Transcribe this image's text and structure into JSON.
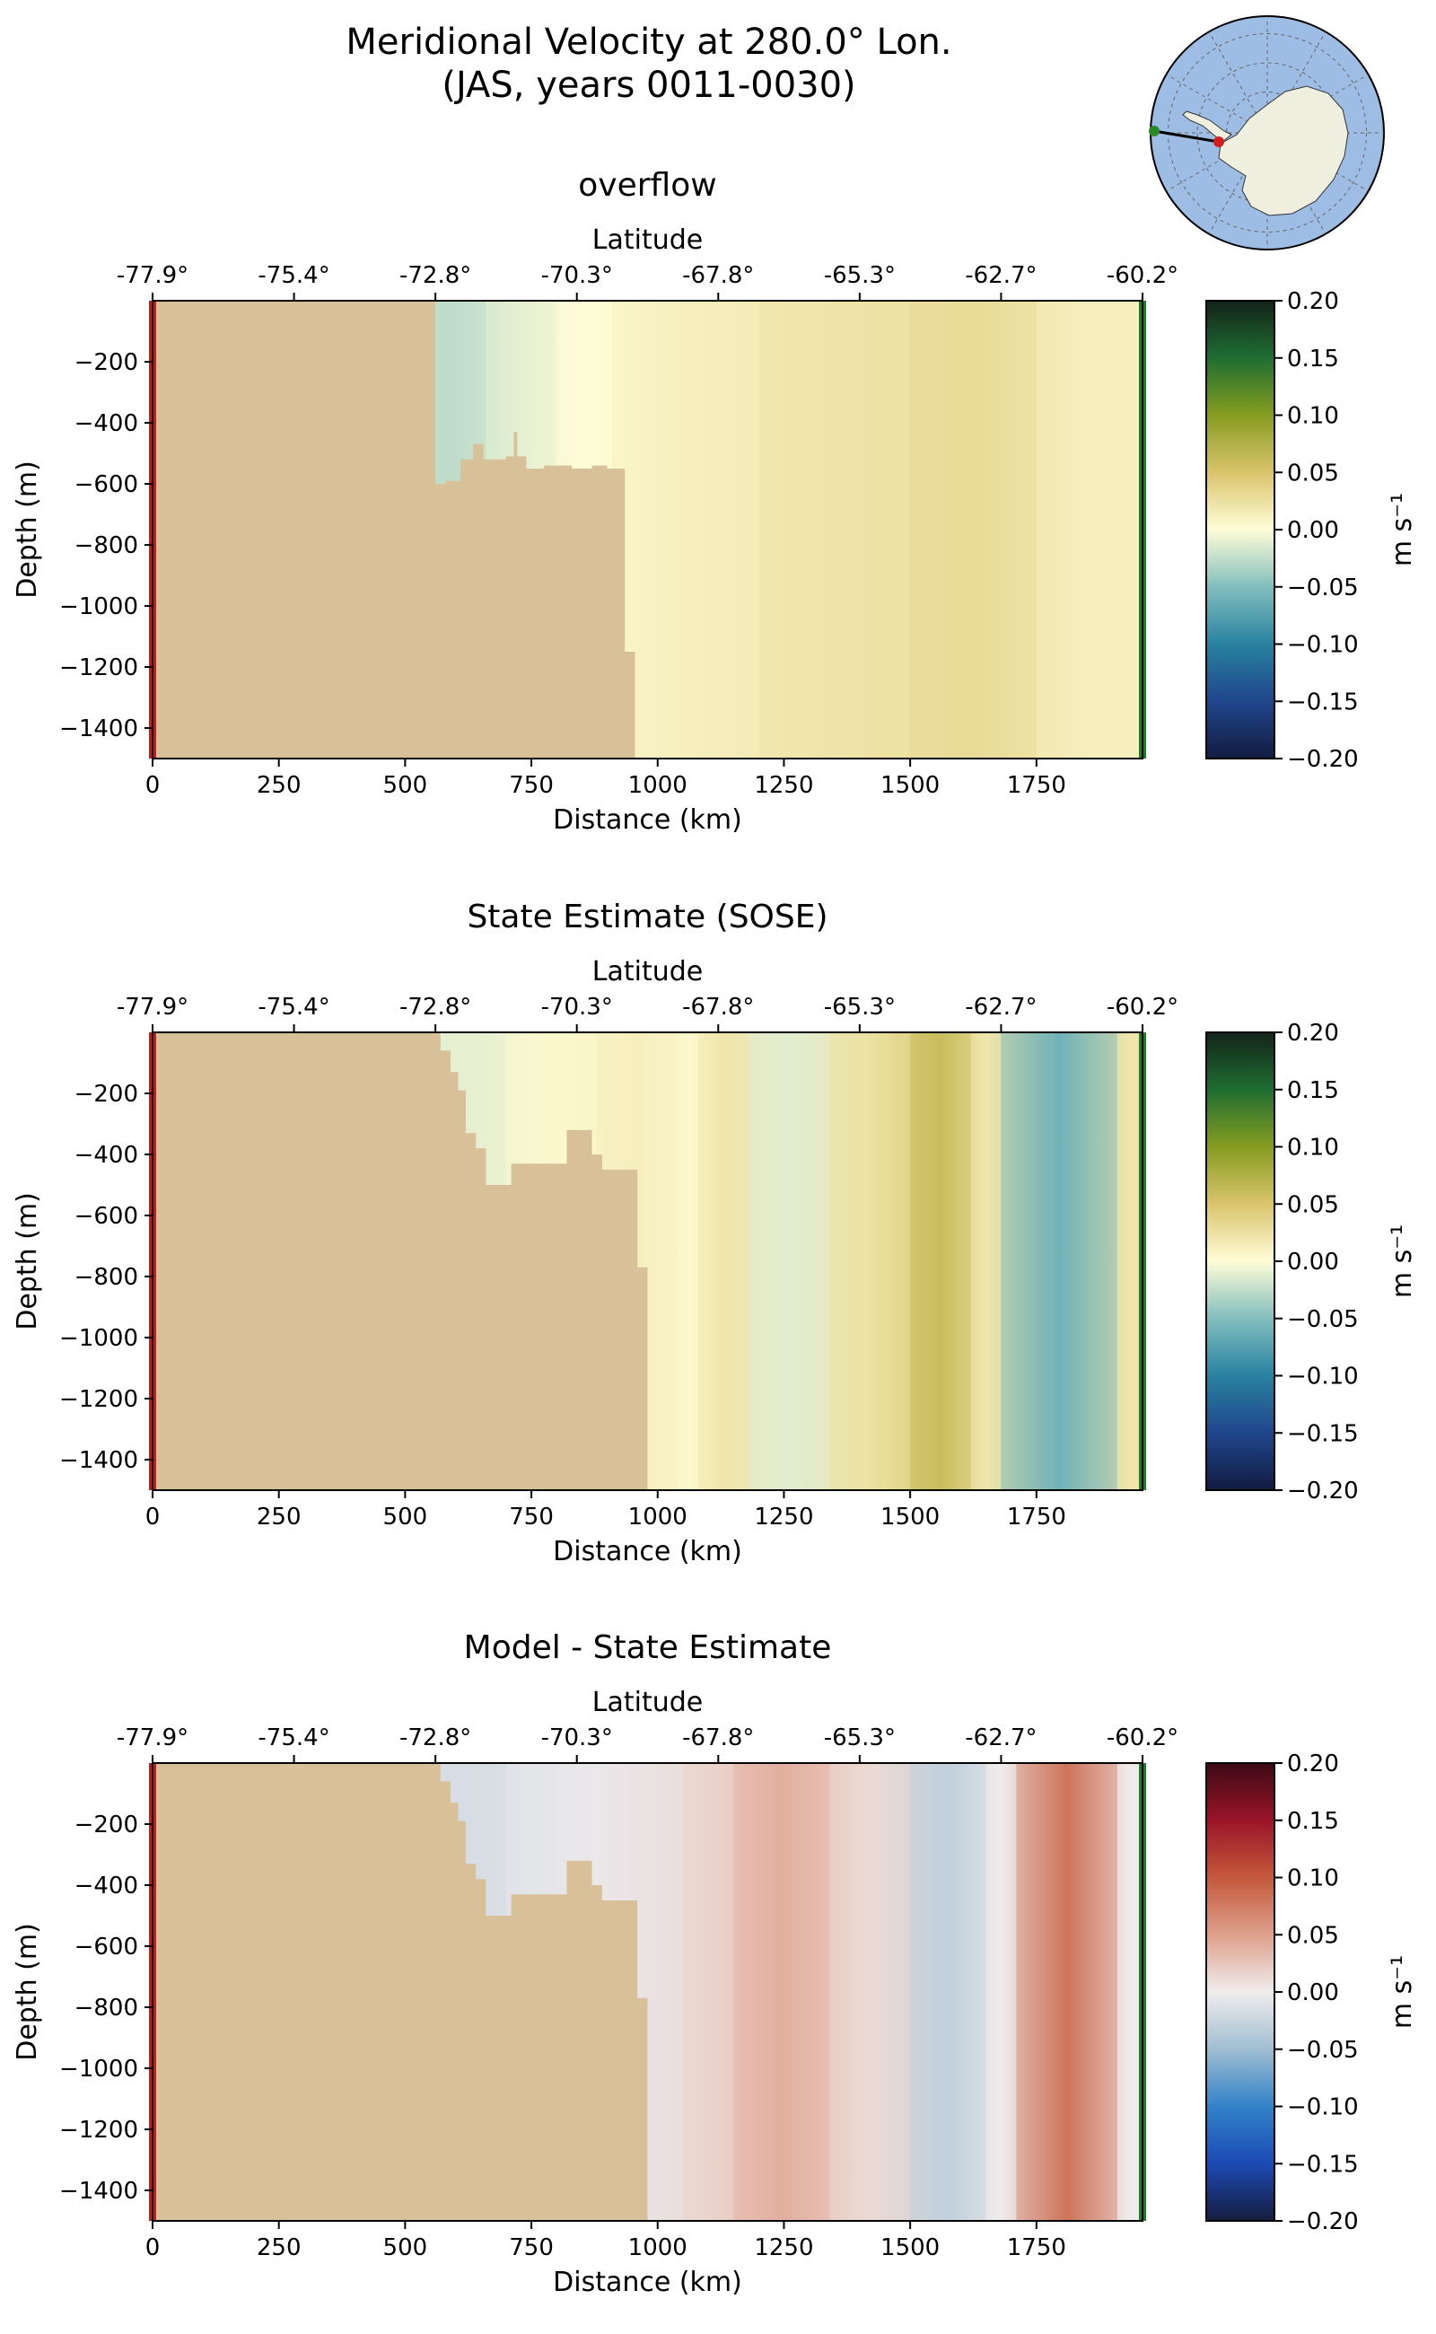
{
  "figure": {
    "title_line1": "Meridional Velocity at 280.0° Lon.",
    "title_line2": "(JAS, years 0011-0030)"
  },
  "colors": {
    "land": "#d8c098",
    "ocean_map": "#9ebde4",
    "antarctica": "#efefdf",
    "start_marker": "#c21d1d",
    "end_marker": "#1e7d2a",
    "map_dot_start": "#2a8a2a",
    "map_dot_end": "#d21e1e"
  },
  "inset_map": {
    "section_line": "Antarctic Peninsula section",
    "start_label": "",
    "end_label": ""
  },
  "chart_data": [
    {
      "type": "heatmap",
      "title": "overflow",
      "xlabel": "Distance (km)",
      "ylabel": "Depth (m)",
      "top_xlabel": "Latitude",
      "xlim": [
        0,
        1960
      ],
      "ylim": [
        -1500,
        0
      ],
      "x_ticks": [
        0,
        250,
        500,
        750,
        1000,
        1250,
        1500,
        1750
      ],
      "x_tick_labels": [
        "0",
        "250",
        "500",
        "750",
        "1000",
        "1250",
        "1500",
        "1750"
      ],
      "y_ticks": [
        -200,
        -400,
        -600,
        -800,
        -1000,
        -1200,
        -1400
      ],
      "y_tick_labels": [
        "−200",
        "−400",
        "−600",
        "−800",
        "−1000",
        "−1200",
        "−1400"
      ],
      "lat_ticks": [
        0,
        280,
        560,
        840,
        1120,
        1400,
        1680,
        1960
      ],
      "lat_tick_labels": [
        "-77.9°",
        "-75.4°",
        "-72.8°",
        "-70.3°",
        "-67.8°",
        "-65.3°",
        "-62.7°",
        "-60.2°"
      ],
      "colormap": "delta",
      "colorbar": {
        "label": "m s⁻¹",
        "range": [
          -0.2,
          0.2
        ],
        "ticks": [
          0.2,
          0.15,
          0.1,
          0.05,
          0.0,
          -0.05,
          -0.1,
          -0.15,
          -0.2
        ],
        "tick_labels": [
          "0.20",
          "0.15",
          "0.10",
          "0.05",
          "0.00",
          "−0.05",
          "−0.10",
          "−0.15",
          "−0.20"
        ]
      },
      "velocity_columns": [
        {
          "x0": 560,
          "x1": 660,
          "value": -0.025
        },
        {
          "x0": 660,
          "x1": 800,
          "value": -0.01
        },
        {
          "x0": 800,
          "x1": 910,
          "value": 0.0
        },
        {
          "x0": 910,
          "x1": 1200,
          "value": 0.012
        },
        {
          "x0": 1200,
          "x1": 1500,
          "value": 0.022
        },
        {
          "x0": 1500,
          "x1": 1750,
          "value": 0.03
        },
        {
          "x0": 1750,
          "x1": 1960,
          "value": 0.012
        }
      ],
      "bathymetry": [
        [
          0,
          0
        ],
        [
          560,
          0
        ],
        [
          560,
          -600
        ],
        [
          580,
          -600
        ],
        [
          580,
          -590
        ],
        [
          610,
          -590
        ],
        [
          610,
          -520
        ],
        [
          635,
          -520
        ],
        [
          635,
          -470
        ],
        [
          655,
          -470
        ],
        [
          655,
          -520
        ],
        [
          700,
          -520
        ],
        [
          700,
          -510
        ],
        [
          715,
          -510
        ],
        [
          715,
          -430
        ],
        [
          722,
          -430
        ],
        [
          722,
          -510
        ],
        [
          740,
          -510
        ],
        [
          740,
          -550
        ],
        [
          775,
          -550
        ],
        [
          775,
          -540
        ],
        [
          830,
          -540
        ],
        [
          830,
          -550
        ],
        [
          870,
          -550
        ],
        [
          870,
          -540
        ],
        [
          900,
          -540
        ],
        [
          900,
          -550
        ],
        [
          935,
          -550
        ],
        [
          935,
          -1150
        ],
        [
          955,
          -1150
        ],
        [
          955,
          -1500
        ],
        [
          0,
          -1500
        ]
      ]
    },
    {
      "type": "heatmap",
      "title": "State Estimate (SOSE)",
      "xlabel": "Distance (km)",
      "ylabel": "Depth (m)",
      "top_xlabel": "Latitude",
      "xlim": [
        0,
        1960
      ],
      "ylim": [
        -1500,
        0
      ],
      "x_ticks": [
        0,
        250,
        500,
        750,
        1000,
        1250,
        1500,
        1750
      ],
      "x_tick_labels": [
        "0",
        "250",
        "500",
        "750",
        "1000",
        "1250",
        "1500",
        "1750"
      ],
      "y_ticks": [
        -200,
        -400,
        -600,
        -800,
        -1000,
        -1200,
        -1400
      ],
      "y_tick_labels": [
        "−200",
        "−400",
        "−600",
        "−800",
        "−1000",
        "−1200",
        "−1400"
      ],
      "lat_ticks": [
        0,
        280,
        560,
        840,
        1120,
        1400,
        1680,
        1960
      ],
      "lat_tick_labels": [
        "-77.9°",
        "-75.4°",
        "-72.8°",
        "-70.3°",
        "-67.8°",
        "-65.3°",
        "-62.7°",
        "-60.2°"
      ],
      "colormap": "delta",
      "colorbar": {
        "label": "m s⁻¹",
        "range": [
          -0.2,
          0.2
        ],
        "ticks": [
          0.2,
          0.15,
          0.1,
          0.05,
          0.0,
          -0.05,
          -0.1,
          -0.15,
          -0.2
        ],
        "tick_labels": [
          "0.20",
          "0.15",
          "0.10",
          "0.05",
          "0.00",
          "−0.05",
          "−0.10",
          "−0.15",
          "−0.20"
        ]
      },
      "velocity_columns": [
        {
          "x0": 580,
          "x1": 700,
          "value": -0.01
        },
        {
          "x0": 700,
          "x1": 880,
          "value": 0.004
        },
        {
          "x0": 880,
          "x1": 1040,
          "value": 0.012
        },
        {
          "x0": 1040,
          "x1": 1080,
          "value": 0.004
        },
        {
          "x0": 1080,
          "x1": 1180,
          "value": 0.02
        },
        {
          "x0": 1180,
          "x1": 1340,
          "value": -0.012
        },
        {
          "x0": 1340,
          "x1": 1500,
          "value": 0.025
        },
        {
          "x0": 1500,
          "x1": 1620,
          "value": 0.06
        },
        {
          "x0": 1620,
          "x1": 1680,
          "value": 0.02
        },
        {
          "x0": 1680,
          "x1": 1910,
          "value": -0.06
        },
        {
          "x0": 1910,
          "x1": 1960,
          "value": 0.02
        }
      ],
      "bathymetry": [
        [
          0,
          0
        ],
        [
          570,
          0
        ],
        [
          570,
          -60
        ],
        [
          590,
          -60
        ],
        [
          590,
          -130
        ],
        [
          605,
          -130
        ],
        [
          605,
          -190
        ],
        [
          620,
          -190
        ],
        [
          620,
          -330
        ],
        [
          640,
          -330
        ],
        [
          640,
          -380
        ],
        [
          660,
          -380
        ],
        [
          660,
          -500
        ],
        [
          710,
          -500
        ],
        [
          710,
          -430
        ],
        [
          820,
          -430
        ],
        [
          820,
          -320
        ],
        [
          870,
          -320
        ],
        [
          870,
          -400
        ],
        [
          890,
          -400
        ],
        [
          890,
          -450
        ],
        [
          960,
          -450
        ],
        [
          960,
          -770
        ],
        [
          980,
          -770
        ],
        [
          980,
          -1500
        ],
        [
          0,
          -1500
        ]
      ]
    },
    {
      "type": "heatmap",
      "title": "Model - State Estimate",
      "xlabel": "Distance (km)",
      "ylabel": "Depth (m)",
      "top_xlabel": "Latitude",
      "xlim": [
        0,
        1960
      ],
      "ylim": [
        -1500,
        0
      ],
      "x_ticks": [
        0,
        250,
        500,
        750,
        1000,
        1250,
        1500,
        1750
      ],
      "x_tick_labels": [
        "0",
        "250",
        "500",
        "750",
        "1000",
        "1250",
        "1500",
        "1750"
      ],
      "y_ticks": [
        -200,
        -400,
        -600,
        -800,
        -1000,
        -1200,
        -1400
      ],
      "y_tick_labels": [
        "−200",
        "−400",
        "−600",
        "−800",
        "−1000",
        "−1200",
        "−1400"
      ],
      "lat_ticks": [
        0,
        280,
        560,
        840,
        1120,
        1400,
        1680,
        1960
      ],
      "lat_tick_labels": [
        "-77.9°",
        "-75.4°",
        "-72.8°",
        "-70.3°",
        "-67.8°",
        "-65.3°",
        "-62.7°",
        "-60.2°"
      ],
      "colormap": "balance",
      "colorbar": {
        "label": "m s⁻¹",
        "range": [
          -0.2,
          0.2
        ],
        "ticks": [
          0.2,
          0.15,
          0.1,
          0.05,
          0.0,
          -0.05,
          -0.1,
          -0.15,
          -0.2
        ],
        "tick_labels": [
          "0.20",
          "0.15",
          "0.10",
          "0.05",
          "0.00",
          "−0.05",
          "−0.10",
          "−0.15",
          "−0.20"
        ]
      },
      "velocity_columns": [
        {
          "x0": 580,
          "x1": 700,
          "value": -0.015
        },
        {
          "x0": 700,
          "x1": 1050,
          "value": -0.004
        },
        {
          "x0": 1050,
          "x1": 1150,
          "value": 0.015
        },
        {
          "x0": 1150,
          "x1": 1340,
          "value": 0.04
        },
        {
          "x0": 1340,
          "x1": 1500,
          "value": 0.012
        },
        {
          "x0": 1500,
          "x1": 1650,
          "value": -0.03
        },
        {
          "x0": 1650,
          "x1": 1710,
          "value": 0.0
        },
        {
          "x0": 1710,
          "x1": 1910,
          "value": 0.08
        },
        {
          "x0": 1910,
          "x1": 1960,
          "value": 0.0
        }
      ],
      "bathymetry": [
        [
          0,
          0
        ],
        [
          570,
          0
        ],
        [
          570,
          -60
        ],
        [
          590,
          -60
        ],
        [
          590,
          -130
        ],
        [
          605,
          -130
        ],
        [
          605,
          -190
        ],
        [
          620,
          -190
        ],
        [
          620,
          -330
        ],
        [
          640,
          -330
        ],
        [
          640,
          -380
        ],
        [
          660,
          -380
        ],
        [
          660,
          -500
        ],
        [
          710,
          -500
        ],
        [
          710,
          -430
        ],
        [
          820,
          -430
        ],
        [
          820,
          -320
        ],
        [
          870,
          -320
        ],
        [
          870,
          -400
        ],
        [
          890,
          -400
        ],
        [
          890,
          -450
        ],
        [
          960,
          -450
        ],
        [
          960,
          -770
        ],
        [
          980,
          -770
        ],
        [
          980,
          -1500
        ],
        [
          0,
          -1500
        ]
      ]
    }
  ]
}
